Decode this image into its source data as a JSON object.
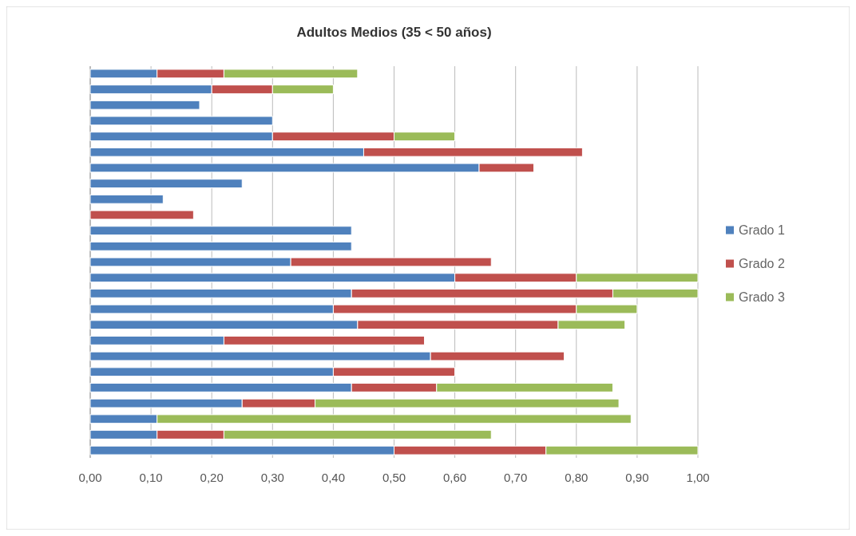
{
  "chart_data": {
    "type": "bar",
    "orientation": "horizontal",
    "stacked": true,
    "title": "Adultos Medios (35 < 50 años)",
    "categories": [
      null,
      null,
      null,
      null,
      null,
      null,
      null,
      null,
      null,
      null,
      null,
      null,
      null,
      null,
      null,
      null,
      null,
      null,
      null,
      null,
      null,
      null,
      null,
      null,
      null
    ],
    "series": [
      {
        "name": "Grado 1",
        "color": "#4f81bd",
        "values": [
          0.11,
          0.2,
          0.18,
          0.3,
          0.3,
          0.45,
          0.64,
          0.25,
          0.12,
          null,
          0.43,
          0.43,
          0.33,
          0.6,
          0.43,
          0.4,
          0.44,
          0.22,
          0.56,
          0.4,
          0.43,
          0.25,
          0.11,
          0.11,
          0.5
        ]
      },
      {
        "name": "Grado 2",
        "color": "#c0504d",
        "values": [
          0.11,
          0.1,
          null,
          null,
          0.2,
          0.36,
          0.09,
          null,
          null,
          0.17,
          null,
          null,
          0.33,
          0.2,
          0.43,
          0.4,
          0.33,
          0.33,
          0.22,
          0.2,
          0.14,
          0.12,
          null,
          0.11,
          0.25
        ]
      },
      {
        "name": "Grado 3",
        "color": "#9bbb59",
        "values": [
          0.22,
          0.1,
          null,
          null,
          0.1,
          null,
          null,
          null,
          null,
          null,
          null,
          null,
          null,
          0.2,
          0.14,
          0.1,
          0.11,
          null,
          null,
          null,
          0.29,
          0.5,
          0.78,
          0.44,
          0.25
        ]
      }
    ],
    "xlim": [
      0,
      1
    ],
    "xticks": [
      {
        "value": 0,
        "label": "0,00"
      },
      {
        "value": 0.1,
        "label": "0,10"
      },
      {
        "value": 0.2,
        "label": "0,20"
      },
      {
        "value": 0.3,
        "label": "0,30"
      },
      {
        "value": 0.4,
        "label": "0,40"
      },
      {
        "value": 0.5,
        "label": "0,50"
      },
      {
        "value": 0.6,
        "label": "0,60"
      },
      {
        "value": 0.7,
        "label": "0,70"
      },
      {
        "value": 0.8,
        "label": "0,80"
      },
      {
        "value": 0.9,
        "label": "0,90"
      },
      {
        "value": 1,
        "label": "1,00"
      }
    ],
    "grid": "x",
    "legend": "right"
  }
}
